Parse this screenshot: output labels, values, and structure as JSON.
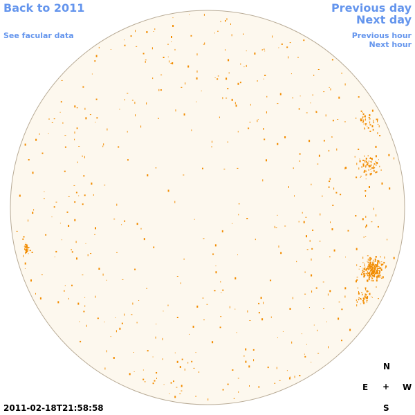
{
  "nav": {
    "back_label": "Back to 2011",
    "facular_label": "See facular data",
    "prev_day_label": "Previous day",
    "next_day_label": "Next day",
    "prev_hour_label": "Previous hour",
    "next_hour_label": "Next hour"
  },
  "compass": {
    "north": "N",
    "south": "S",
    "east": "E",
    "west": "W",
    "center": "+"
  },
  "timestamp": "2011-02-18T21:58:58",
  "colors": {
    "link": "#6495ed",
    "disk_fill": "#fdf8ee",
    "disk_edge": "#b8ab96",
    "spot": "#f28c00"
  }
}
